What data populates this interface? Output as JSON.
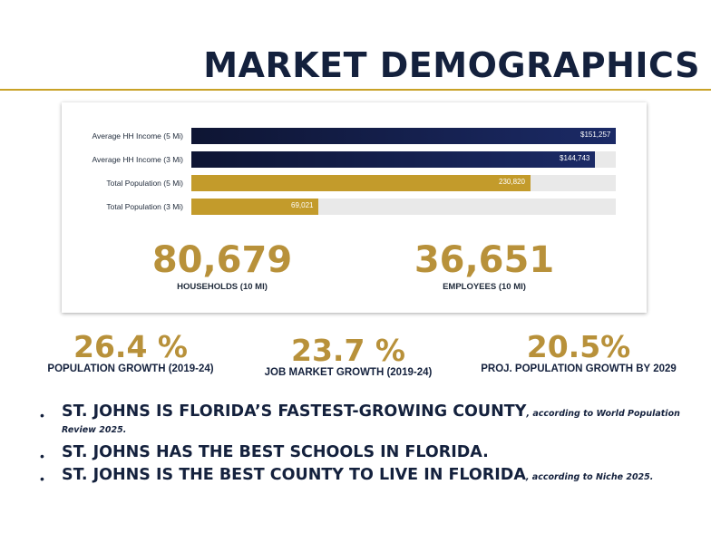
{
  "header": {
    "title": "MARKET DEMOGRAPHICS"
  },
  "chart_data": {
    "type": "bar",
    "orientation": "horizontal",
    "categories": [
      "Average HH Income (5 Mi)",
      "Average HH Income (3 Mi)",
      "Total Population (5 Mi)",
      "Total Population (3 Mi)"
    ],
    "values": [
      151257,
      144743,
      230820,
      69021
    ],
    "value_labels": [
      "$151,257",
      "$144,743",
      "230,820",
      "69,021"
    ],
    "fill_fractions": [
      1.0,
      0.95,
      0.8,
      0.3
    ],
    "colors": [
      "#14204a",
      "#14204a",
      "#c39b2b",
      "#c39b2b"
    ]
  },
  "stats": {
    "households": {
      "value": "80,679",
      "caption": "HOUSEHOLDS (10 MI)"
    },
    "employees": {
      "value": "36,651",
      "caption": "EMPLOYEES (10 MI)"
    }
  },
  "growth": [
    {
      "value": "26.4 %",
      "caption": "POPULATION GROWTH (2019-24)"
    },
    {
      "value": "23.7 %",
      "caption": "JOB MARKET GROWTH (2019-24)"
    },
    {
      "value": "20.5%",
      "caption": "PROJ. POPULATION GROWTH BY 2029"
    }
  ],
  "bullets": [
    {
      "main": "ST. JOHNS IS FLORIDA’S FASTEST-GROWING COUNTY",
      "note": ", according to World Population Review 2025."
    },
    {
      "main": "ST. JOHNS HAS THE BEST SCHOOLS IN FLORIDA.",
      "note": ""
    },
    {
      "main": "ST. JOHNS IS THE BEST COUNTY TO LIVE IN FLORIDA",
      "note": ", according to Niche 2025."
    }
  ],
  "theme": {
    "navy": "#14213d",
    "gold": "#b8913a",
    "track": "#e9e9e9"
  }
}
